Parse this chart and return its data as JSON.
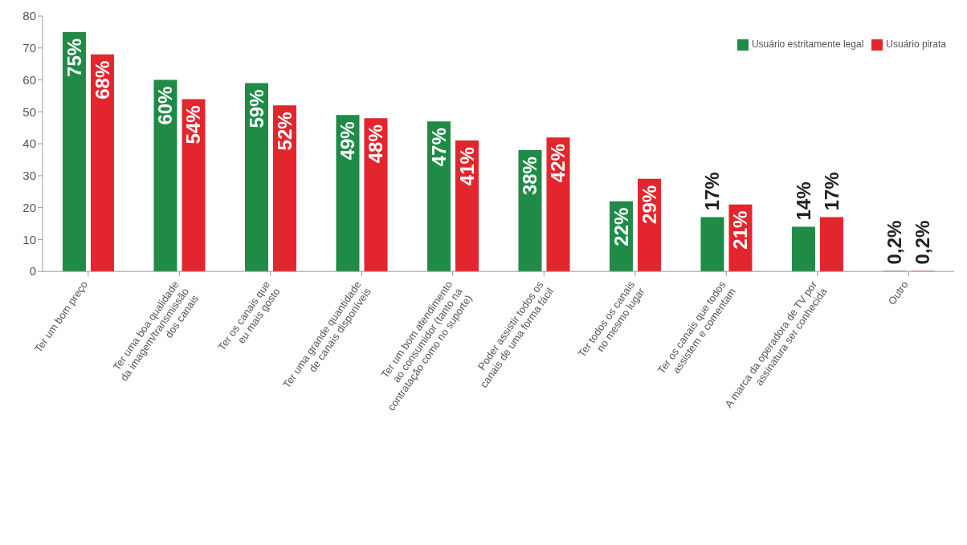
{
  "chart_data": {
    "type": "bar",
    "categories": [
      "Ter um bom preço",
      "Ter uma boa qualidade\nda imagem/transmissão\ndos canais",
      "Ter os canais que\neu mais gosto",
      "Ter uma grande quantidade\nde canais disponíveis",
      "Ter um bom atendimento\nao consumidor (tanto na\ncontratação como no suporte)",
      "Poder assistir todos os\ncanais de uma forma fácil",
      "Ter todos os canais\nno mesmo lugar",
      "Ter os canais que todos\nassistem e comentam",
      "A marca da operadora de TV por\nassinatura ser conhecida",
      "Outro"
    ],
    "series": [
      {
        "name": "Usuário estritamente legal",
        "color": "#1f8b46",
        "values": [
          75,
          60,
          59,
          49,
          47,
          38,
          22,
          17,
          14,
          0.2
        ],
        "value_labels": [
          "75%",
          "60%",
          "59%",
          "49%",
          "47%",
          "38%",
          "22%",
          "17%",
          "14%",
          "0,2%"
        ]
      },
      {
        "name": "Usuário pirata",
        "color": "#e3262d",
        "values": [
          68,
          54,
          52,
          48,
          41,
          42,
          29,
          21,
          17,
          0.2
        ],
        "value_labels": [
          "68%",
          "54%",
          "52%",
          "48%",
          "41%",
          "42%",
          "29%",
          "21%",
          "17%",
          "0,2%"
        ]
      }
    ],
    "ylim": [
      0,
      80
    ],
    "yticks": [
      0,
      10,
      20,
      30,
      40,
      50,
      60,
      70,
      80
    ],
    "grid": false,
    "legend": "top right"
  }
}
